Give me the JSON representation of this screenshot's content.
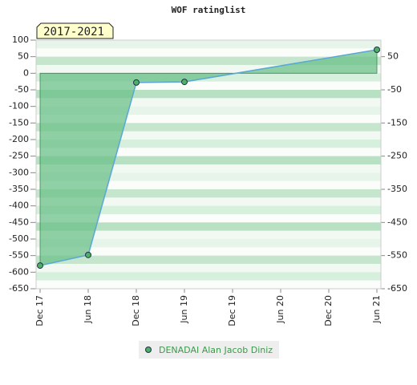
{
  "chart_data": {
    "type": "line",
    "title": "WOF ratinglist",
    "badge": "2017-2021",
    "categories": [
      "Dec 17",
      "Jun 18",
      "Dec 18",
      "Jun 19",
      "Dec 19",
      "Jun 20",
      "Dec 20",
      "Jun 21"
    ],
    "series": [
      {
        "name": "DENADAI Alan Jacob Diniz",
        "color": "#5aa7d8",
        "x": [
          "Dec 17",
          "Jun 18",
          "Dec 18",
          "Jun 19",
          "Jun 21"
        ],
        "values": [
          -580,
          -548,
          -28,
          -26,
          71
        ]
      }
    ],
    "ylim": [
      -650,
      100
    ],
    "yticks": [
      100,
      50,
      0,
      -50,
      -100,
      -150,
      -200,
      -250,
      -300,
      -350,
      -400,
      -450,
      -500,
      -550,
      -600,
      -650
    ],
    "y2lim": [
      -650,
      100
    ],
    "y2ticks": [
      50,
      -50,
      -150,
      -250,
      -350,
      -450,
      -550,
      -650
    ],
    "area_fill": "#6cc08a",
    "marker_color": "#4caf6a"
  }
}
